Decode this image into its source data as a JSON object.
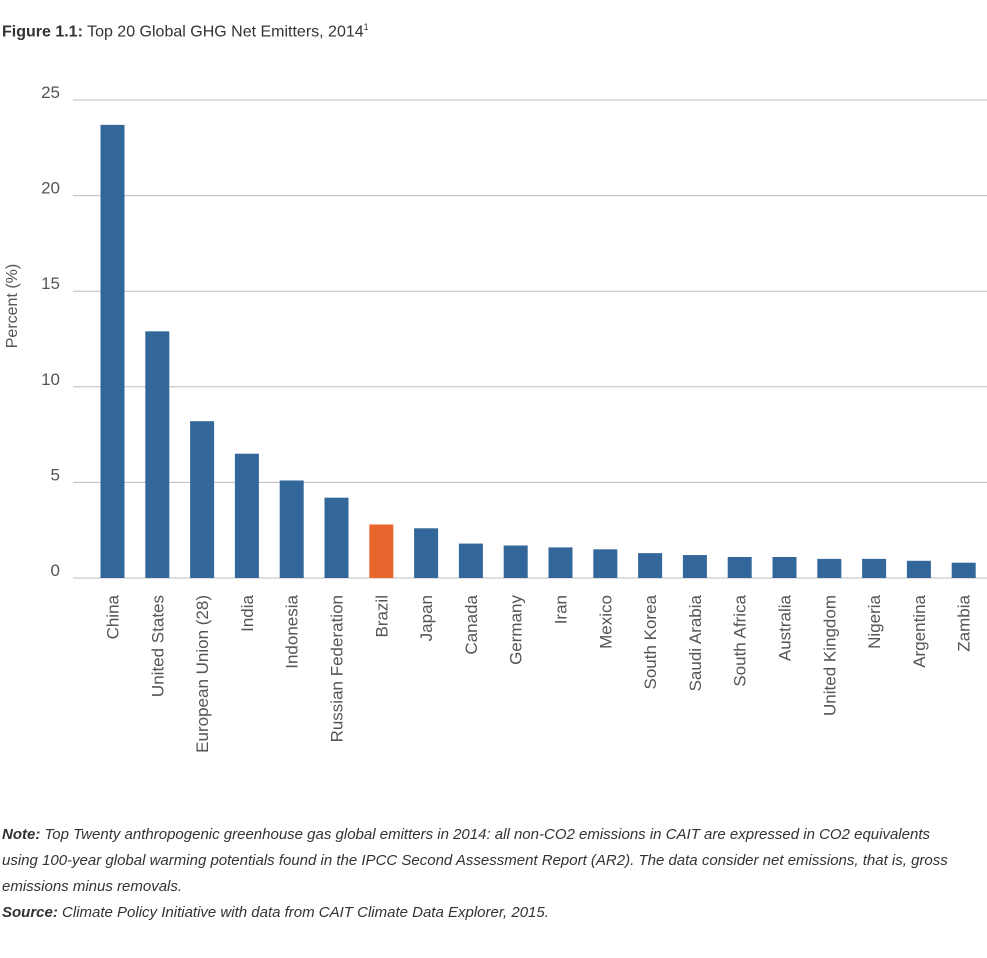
{
  "figure": {
    "label": "Figure 1.1:",
    "title": "Top 20 Global GHG Net Emitters, 2014",
    "footnote_mark": "1"
  },
  "chart_data": {
    "type": "bar",
    "ylabel": "Percent (%)",
    "xlabel": "",
    "ylim": [
      0,
      25
    ],
    "yticks": [
      0,
      5,
      10,
      15,
      20,
      25
    ],
    "grid": true,
    "categories": [
      "China",
      "United States",
      "European Union (28)",
      "India",
      "Indonesia",
      "Russian Federation",
      "Brazil",
      "Japan",
      "Canada",
      "Germany",
      "Iran",
      "Mexico",
      "South Korea",
      "Saudi Arabia",
      "South Africa",
      "Australia",
      "United Kingdom",
      "Nigeria",
      "Argentina",
      "Zambia"
    ],
    "values": [
      23.7,
      12.9,
      8.2,
      6.5,
      5.1,
      4.2,
      2.8,
      2.6,
      1.8,
      1.7,
      1.6,
      1.5,
      1.3,
      1.2,
      1.1,
      1.1,
      1.0,
      1.0,
      0.9,
      0.8
    ],
    "highlight_category": "Brazil",
    "colors": {
      "bar": "#336699",
      "highlight": "#e8652e",
      "grid": "#bdbdbd",
      "axis_text": "#555555"
    }
  },
  "notes": {
    "note_label": "Note:",
    "note_text": "Top Twenty anthropogenic greenhouse gas global emitters in 2014: all non-CO2 emissions in CAIT are expressed in CO2 equivalents using 100-year global warming potentials found in the IPCC Second Assessment Report (AR2). The data consider net emissions, that is, gross emissions minus removals.",
    "source_label": "Source:",
    "source_text": "Climate Policy Initiative with data from CAIT Climate Data Explorer, 2015."
  }
}
